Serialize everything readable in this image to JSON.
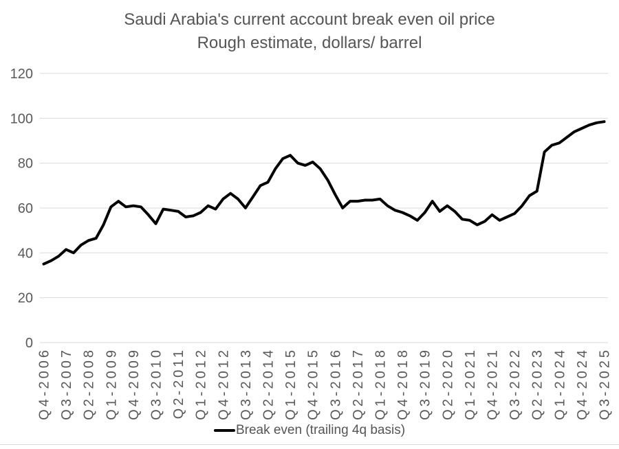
{
  "chart": {
    "title_line1": "Saudi Arabia's current account break even oil price",
    "title_line2": "Rough estimate, dollars/ barrel",
    "legend_label": "Break even (trailing 4q basis)",
    "colors": {
      "line": "#000000",
      "grid": "#d9d9d9",
      "axis_text": "#595959",
      "title_text": "#555555",
      "background": "#ffffff"
    }
  },
  "chart_data": {
    "type": "line",
    "title": "Saudi Arabia's current account break even oil price",
    "subtitle": "Rough estimate, dollars/ barrel",
    "xlabel": "",
    "ylabel": "",
    "ylim": [
      0,
      120
    ],
    "yticks": [
      0,
      20,
      40,
      60,
      80,
      100,
      120
    ],
    "grid": true,
    "legend_position": "bottom",
    "x_tick_interval": 3,
    "x": [
      "Q4-2006",
      "Q1-2007",
      "Q2-2007",
      "Q3-2007",
      "Q4-2007",
      "Q1-2008",
      "Q2-2008",
      "Q3-2008",
      "Q4-2008",
      "Q1-2009",
      "Q2-2009",
      "Q3-2009",
      "Q4-2009",
      "Q1-2010",
      "Q2-2010",
      "Q3-2010",
      "Q4-2010",
      "Q1-2011",
      "Q2-2011",
      "Q3-2011",
      "Q4-2011",
      "Q1-2012",
      "Q2-2012",
      "Q3-2012",
      "Q4-2012",
      "Q1-2013",
      "Q2-2013",
      "Q3-2013",
      "Q4-2013",
      "Q1-2014",
      "Q2-2014",
      "Q3-2014",
      "Q4-2014",
      "Q1-2015",
      "Q2-2015",
      "Q3-2015",
      "Q4-2015",
      "Q1-2016",
      "Q2-2016",
      "Q3-2016",
      "Q4-2016",
      "Q1-2017",
      "Q2-2017",
      "Q3-2017",
      "Q4-2017",
      "Q1-2018",
      "Q2-2018",
      "Q3-2018",
      "Q4-2018",
      "Q1-2019",
      "Q2-2019",
      "Q3-2019",
      "Q4-2019",
      "Q1-2020",
      "Q2-2020",
      "Q3-2020",
      "Q4-2020",
      "Q1-2021",
      "Q2-2021",
      "Q3-2021",
      "Q4-2021",
      "Q1-2022",
      "Q2-2022",
      "Q3-2022",
      "Q4-2022",
      "Q1-2023",
      "Q2-2023",
      "Q3-2023",
      "Q4-2023",
      "Q1-2024",
      "Q2-2024",
      "Q3-2024",
      "Q4-2024",
      "Q1-2025",
      "Q2-2025",
      "Q3-2025"
    ],
    "series": [
      {
        "name": "Break even (trailing 4q basis)",
        "values": [
          35,
          36.5,
          38.5,
          41.5,
          40,
          43.5,
          45.5,
          46.5,
          52.5,
          60.5,
          63,
          60.5,
          61,
          60.5,
          57,
          53,
          59.5,
          59,
          58.5,
          56,
          56.5,
          58,
          61,
          59.5,
          64,
          66.5,
          64,
          60,
          65,
          70,
          71.5,
          77.5,
          82,
          83.5,
          80,
          79,
          80.5,
          77.5,
          72.5,
          66,
          60,
          63,
          63,
          63.5,
          63.5,
          64,
          61,
          59,
          58,
          56.5,
          54.5,
          58,
          63,
          58.5,
          61,
          58.5,
          55,
          54.5,
          52.5,
          54,
          57,
          54.5,
          56,
          57.5,
          61,
          65.5,
          67.5,
          85,
          88,
          89,
          91.5,
          94,
          95.5,
          97,
          98,
          98.5
        ]
      }
    ]
  }
}
